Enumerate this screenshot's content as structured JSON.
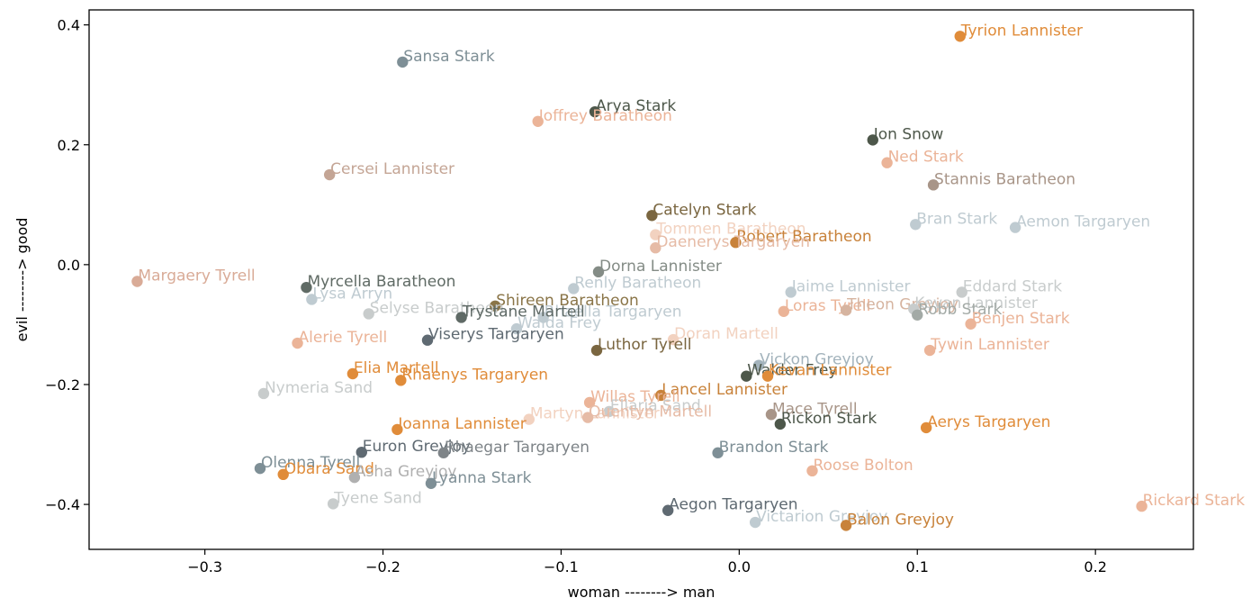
{
  "chart_data": {
    "type": "scatter",
    "title": "",
    "xlabel": "woman --------> man",
    "ylabel": "evil --------> good",
    "xlim": [
      -0.365,
      0.255
    ],
    "ylim": [
      -0.475,
      0.425
    ],
    "xticks": [
      -0.3,
      -0.2,
      -0.1,
      0.0,
      0.1,
      0.2
    ],
    "xtick_labels": [
      "−0.3",
      "−0.2",
      "−0.1",
      "0.0",
      "0.1",
      "0.2"
    ],
    "yticks": [
      -0.4,
      -0.2,
      0.0,
      0.2,
      0.4
    ],
    "ytick_labels": [
      "−0.4",
      "−0.2",
      "0.0",
      "0.2",
      "0.4"
    ],
    "grid": false,
    "legend": "none",
    "points": [
      {
        "name": "Tyrion Lannister",
        "x": 0.124,
        "y": 0.381,
        "color": "#e08c3a"
      },
      {
        "name": "Sansa Stark",
        "x": -0.189,
        "y": 0.338,
        "color": "#7e8f96"
      },
      {
        "name": "Arya Stark",
        "x": -0.081,
        "y": 0.255,
        "color": "#4d574a"
      },
      {
        "name": "Joffrey Baratheon",
        "x": -0.113,
        "y": 0.239,
        "color": "#ebb498"
      },
      {
        "name": "Jon Snow",
        "x": 0.075,
        "y": 0.208,
        "color": "#4d574a"
      },
      {
        "name": "Ned Stark",
        "x": 0.083,
        "y": 0.17,
        "color": "#ebb498"
      },
      {
        "name": "Cersei Lannister",
        "x": -0.23,
        "y": 0.15,
        "color": "#c4a595"
      },
      {
        "name": "Stannis Baratheon",
        "x": 0.109,
        "y": 0.133,
        "color": "#a89588"
      },
      {
        "name": "Catelyn Stark",
        "x": -0.049,
        "y": 0.082,
        "color": "#7a6640"
      },
      {
        "name": "Bran Stark",
        "x": 0.099,
        "y": 0.067,
        "color": "#bfcbd1"
      },
      {
        "name": "Aemon Targaryen",
        "x": 0.155,
        "y": 0.062,
        "color": "#bfcbd1"
      },
      {
        "name": "Tommen Baratheon",
        "x": -0.047,
        "y": 0.05,
        "color": "#f2d2c0"
      },
      {
        "name": "Robert Baratheon",
        "x": -0.002,
        "y": 0.037,
        "color": "#c8823a"
      },
      {
        "name": "Daenerys Targaryen",
        "x": -0.047,
        "y": 0.028,
        "color": "#e6bba6"
      },
      {
        "name": "Dorna Lannister",
        "x": -0.079,
        "y": -0.012,
        "color": "#848c86"
      },
      {
        "name": "Margaery Tyrell",
        "x": -0.338,
        "y": -0.028,
        "color": "#d9ab97"
      },
      {
        "name": "Myrcella Baratheon",
        "x": -0.243,
        "y": -0.038,
        "color": "#606b65"
      },
      {
        "name": "Renly Baratheon",
        "x": -0.093,
        "y": -0.04,
        "color": "#bfcbd1"
      },
      {
        "name": "Jaime Lannister",
        "x": 0.029,
        "y": -0.046,
        "color": "#bfcbd1"
      },
      {
        "name": "Eddard Stark",
        "x": 0.125,
        "y": -0.046,
        "color": "#c8cccc"
      },
      {
        "name": "Lysa Arryn",
        "x": -0.24,
        "y": -0.058,
        "color": "#bfcbd1"
      },
      {
        "name": "Shireen Baratheon",
        "x": -0.137,
        "y": -0.069,
        "color": "#8a7548"
      },
      {
        "name": "Loras Tyrell",
        "x": 0.025,
        "y": -0.078,
        "color": "#ebb498"
      },
      {
        "name": "Theon Greyjoy",
        "x": 0.06,
        "y": -0.076,
        "color": "#d6b4a0"
      },
      {
        "name": "Kevan Lannister",
        "x": 0.098,
        "y": -0.074,
        "color": "#c8cccc"
      },
      {
        "name": "Robb Stark",
        "x": 0.1,
        "y": -0.084,
        "color": "#a3aaa6"
      },
      {
        "name": "Selyse Baratheon",
        "x": -0.208,
        "y": -0.082,
        "color": "#c8cccc"
      },
      {
        "name": "Rhaella Targaryen",
        "x": -0.11,
        "y": -0.088,
        "color": "#bfcbd1"
      },
      {
        "name": "Trystane Martell",
        "x": -0.156,
        "y": -0.088,
        "color": "#5f6a66"
      },
      {
        "name": "Benjen Stark",
        "x": 0.13,
        "y": -0.099,
        "color": "#ebb498"
      },
      {
        "name": "Walda Frey",
        "x": -0.125,
        "y": -0.107,
        "color": "#bfcbd1"
      },
      {
        "name": "Viserys Targaryen",
        "x": -0.175,
        "y": -0.126,
        "color": "#5f6a72"
      },
      {
        "name": "Alerie Tyrell",
        "x": -0.248,
        "y": -0.131,
        "color": "#ebb498"
      },
      {
        "name": "Doran Martell",
        "x": -0.037,
        "y": -0.125,
        "color": "#f2d2c0"
      },
      {
        "name": "Luthor Tyrell",
        "x": -0.08,
        "y": -0.143,
        "color": "#7a6640"
      },
      {
        "name": "Tywin Lannister",
        "x": 0.107,
        "y": -0.143,
        "color": "#ebb498"
      },
      {
        "name": "Vickon Greyjoy",
        "x": 0.011,
        "y": -0.168,
        "color": "#a3b3bc"
      },
      {
        "name": "Walder Frey",
        "x": 0.004,
        "y": -0.186,
        "color": "#4d574a"
      },
      {
        "name": "Kevan Lannister",
        "x": 0.016,
        "y": -0.186,
        "color": "#e08c3a"
      },
      {
        "name": "Elia Martell",
        "x": -0.217,
        "y": -0.182,
        "color": "#e08c3a"
      },
      {
        "name": "Rhaenys Targaryen",
        "x": -0.19,
        "y": -0.193,
        "color": "#e08c3a"
      },
      {
        "name": "Nymeria Sand",
        "x": -0.267,
        "y": -0.215,
        "color": "#c8cccc"
      },
      {
        "name": "Lancel Lannister",
        "x": -0.044,
        "y": -0.218,
        "color": "#c8823a"
      },
      {
        "name": "Willas Tyrell",
        "x": -0.084,
        "y": -0.23,
        "color": "#ebb498"
      },
      {
        "name": "Ellaria Sand",
        "x": -0.073,
        "y": -0.245,
        "color": "#c8cccc"
      },
      {
        "name": "Martyn Lannister",
        "x": -0.118,
        "y": -0.258,
        "color": "#f2d2c0"
      },
      {
        "name": "Quentyn Martell",
        "x": -0.085,
        "y": -0.255,
        "color": "#e6bba6"
      },
      {
        "name": "Mace Tyrell",
        "x": 0.018,
        "y": -0.25,
        "color": "#a89588"
      },
      {
        "name": "Rickon Stark",
        "x": 0.023,
        "y": -0.266,
        "color": "#4d574a"
      },
      {
        "name": "Joanna Lannister",
        "x": -0.192,
        "y": -0.275,
        "color": "#e08c3a"
      },
      {
        "name": "Aerys Targaryen",
        "x": 0.105,
        "y": -0.272,
        "color": "#e08c3a"
      },
      {
        "name": "Euron Greyjoy",
        "x": -0.212,
        "y": -0.313,
        "color": "#5f6a72"
      },
      {
        "name": "Rhaegar Targaryen",
        "x": -0.166,
        "y": -0.314,
        "color": "#7e8488"
      },
      {
        "name": "Brandon Stark",
        "x": -0.012,
        "y": -0.314,
        "color": "#7e8f96"
      },
      {
        "name": "Olenna Tyrell",
        "x": -0.269,
        "y": -0.34,
        "color": "#7e8f96"
      },
      {
        "name": "Obara Sand",
        "x": -0.256,
        "y": -0.35,
        "color": "#e08c3a"
      },
      {
        "name": "Asha Greyjoy",
        "x": -0.216,
        "y": -0.355,
        "color": "#b0b0b0"
      },
      {
        "name": "Roose Bolton",
        "x": 0.041,
        "y": -0.344,
        "color": "#ebb498"
      },
      {
        "name": "Lyanna Stark",
        "x": -0.173,
        "y": -0.365,
        "color": "#7e8f96"
      },
      {
        "name": "Tyene Sand",
        "x": -0.228,
        "y": -0.399,
        "color": "#c8cccc"
      },
      {
        "name": "Aegon Targaryen",
        "x": -0.04,
        "y": -0.41,
        "color": "#5f6a72"
      },
      {
        "name": "Victarion Greyjoy",
        "x": 0.009,
        "y": -0.43,
        "color": "#bfcbd1"
      },
      {
        "name": "Balon Greyjoy",
        "x": 0.06,
        "y": -0.435,
        "color": "#c8823a"
      },
      {
        "name": "Rickard Stark",
        "x": 0.226,
        "y": -0.403,
        "color": "#ebb498"
      }
    ]
  }
}
